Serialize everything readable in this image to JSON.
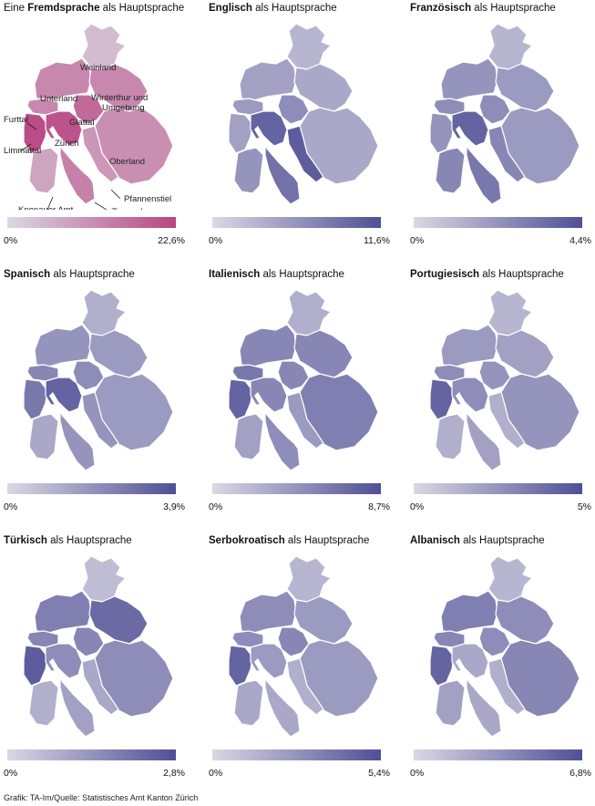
{
  "colors": {
    "low": "#dad8e3",
    "high_blue": "#4f4f96",
    "high_pink": "#b84582",
    "border": "#ffffff"
  },
  "region_labels": [
    "Weinland",
    "Unterland",
    "Winterthur und Umgebung",
    "Furttal",
    "Glattal",
    "Limmattal",
    "Zürich",
    "Oberland",
    "Pfannenstiel",
    "Knonauer Amt",
    "Zimmerberg"
  ],
  "panels": [
    {
      "title_bold": "Fremdsprache",
      "title_prefix": "Eine ",
      "title_suffix": " als Hauptsprache",
      "min": "0%",
      "max": "22,6%",
      "scheme": "pink",
      "values": {
        "weinland": 0.2,
        "unterland": 0.55,
        "winterthur": 0.55,
        "furttal": 0.55,
        "glattal": 0.75,
        "limmattal": 0.95,
        "zuerich": 0.9,
        "oberland": 0.5,
        "pfannenstiel": 0.45,
        "knonau": 0.35,
        "zimmerberg": 0.6
      }
    },
    {
      "title_bold": "Englisch",
      "title_prefix": "",
      "title_suffix": " als Hauptsprache",
      "min": "0%",
      "max": "11,6%",
      "scheme": "blue",
      "values": {
        "weinland": 0.25,
        "unterland": 0.4,
        "winterthur": 0.35,
        "furttal": 0.45,
        "glattal": 0.55,
        "limmattal": 0.4,
        "zuerich": 0.85,
        "oberland": 0.35,
        "pfannenstiel": 0.9,
        "knonau": 0.5,
        "zimmerberg": 0.75
      }
    },
    {
      "title_bold": "Französisch",
      "title_prefix": "",
      "title_suffix": " als Hauptsprache",
      "min": "0%",
      "max": "4,4%",
      "scheme": "blue",
      "values": {
        "weinland": 0.25,
        "unterland": 0.5,
        "winterthur": 0.45,
        "furttal": 0.55,
        "glattal": 0.55,
        "limmattal": 0.5,
        "zuerich": 0.85,
        "oberland": 0.45,
        "pfannenstiel": 0.6,
        "knonau": 0.6,
        "zimmerberg": 0.7
      }
    },
    {
      "title_bold": "Spanisch",
      "title_prefix": "",
      "title_suffix": " als Hauptsprache",
      "min": "0%",
      "max": "3,9%",
      "scheme": "blue",
      "values": {
        "weinland": 0.3,
        "unterland": 0.5,
        "winterthur": 0.45,
        "furttal": 0.6,
        "glattal": 0.55,
        "limmattal": 0.7,
        "zuerich": 0.85,
        "oberland": 0.45,
        "pfannenstiel": 0.5,
        "knonau": 0.35,
        "zimmerberg": 0.5
      }
    },
    {
      "title_bold": "Italienisch",
      "title_prefix": "",
      "title_suffix": " als Hauptsprache",
      "min": "0%",
      "max": "8,7%",
      "scheme": "blue",
      "values": {
        "weinland": 0.3,
        "unterland": 0.6,
        "winterthur": 0.6,
        "furttal": 0.7,
        "glattal": 0.6,
        "limmattal": 0.85,
        "zuerich": 0.6,
        "oberland": 0.65,
        "pfannenstiel": 0.45,
        "knonau": 0.4,
        "zimmerberg": 0.55
      }
    },
    {
      "title_bold": "Portugiesisch",
      "title_prefix": "",
      "title_suffix": " als Hauptsprache",
      "min": "0%",
      "max": "5%",
      "scheme": "blue",
      "values": {
        "weinland": 0.25,
        "unterland": 0.45,
        "winterthur": 0.4,
        "furttal": 0.55,
        "glattal": 0.5,
        "limmattal": 0.85,
        "zuerich": 0.55,
        "oberland": 0.5,
        "pfannenstiel": 0.3,
        "knonau": 0.3,
        "zimmerberg": 0.4
      }
    },
    {
      "title_bold": "Türkisch",
      "title_prefix": "",
      "title_suffix": " als Hauptsprache",
      "min": "0%",
      "max": "2,8%",
      "scheme": "blue",
      "values": {
        "weinland": 0.2,
        "unterland": 0.65,
        "winterthur": 0.8,
        "furttal": 0.6,
        "glattal": 0.6,
        "limmattal": 0.9,
        "zuerich": 0.55,
        "oberland": 0.55,
        "pfannenstiel": 0.35,
        "knonau": 0.3,
        "zimmerberg": 0.4
      }
    },
    {
      "title_bold": "Serbokroatisch",
      "title_prefix": "",
      "title_suffix": " als Hauptsprache",
      "min": "0%",
      "max": "5,4%",
      "scheme": "blue",
      "values": {
        "weinland": 0.25,
        "unterland": 0.55,
        "winterthur": 0.45,
        "furttal": 0.55,
        "glattal": 0.6,
        "limmattal": 0.85,
        "zuerich": 0.45,
        "oberland": 0.45,
        "pfannenstiel": 0.3,
        "knonau": 0.35,
        "zimmerberg": 0.35
      }
    },
    {
      "title_bold": "Albanisch",
      "title_prefix": "",
      "title_suffix": " als Hauptsprache",
      "min": "0%",
      "max": "6,8%",
      "scheme": "blue",
      "values": {
        "weinland": 0.25,
        "unterland": 0.65,
        "winterthur": 0.55,
        "furttal": 0.6,
        "glattal": 0.55,
        "limmattal": 0.85,
        "zuerich": 0.35,
        "oberland": 0.6,
        "pfannenstiel": 0.3,
        "knonau": 0.4,
        "zimmerberg": 0.35
      }
    }
  ],
  "footer": "Grafik: TA-Im/Quelle: Statistisches Amt Kanton Zürich"
}
